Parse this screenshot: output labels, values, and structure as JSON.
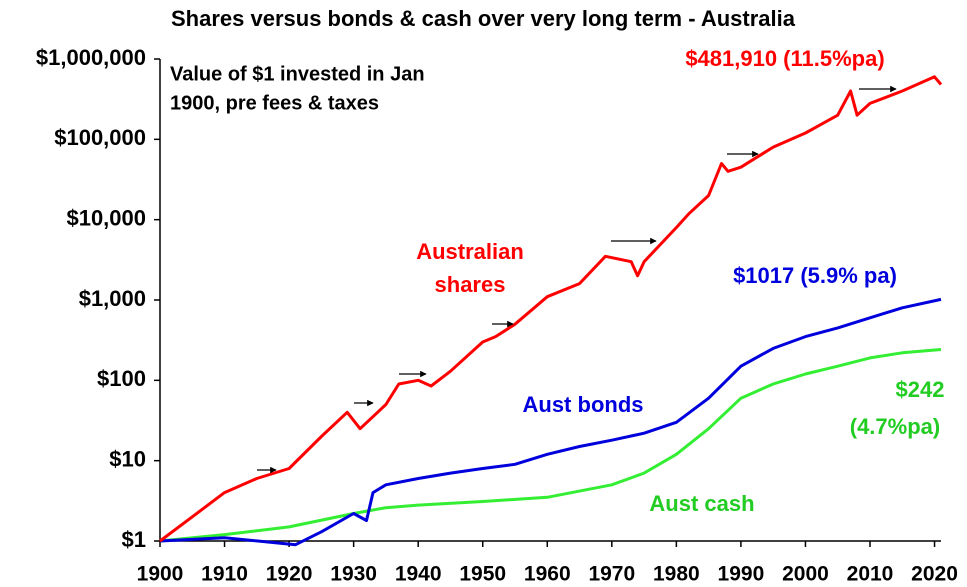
{
  "chart_data": {
    "type": "line",
    "title": "Shares versus bonds & cash over very long term - Australia",
    "log_scale": true,
    "xlim": [
      1900,
      2021
    ],
    "xticks": [
      1900,
      1910,
      1920,
      1930,
      1940,
      1950,
      1960,
      1970,
      1980,
      1990,
      2000,
      2010,
      2020
    ],
    "ylim": [
      1,
      1000000
    ],
    "yticks": [
      {
        "value": 1,
        "label": "$1"
      },
      {
        "value": 10,
        "label": "$10"
      },
      {
        "value": 100,
        "label": "$100"
      },
      {
        "value": 1000,
        "label": "$1,000"
      },
      {
        "value": 10000,
        "label": "$10,000"
      },
      {
        "value": 100000,
        "label": "$100,000"
      },
      {
        "value": 1000000,
        "label": "$1,000,000"
      }
    ],
    "series": [
      {
        "name": "Australian shares",
        "color": "#ff0000",
        "x": [
          1900,
          1905,
          1910,
          1915,
          1920,
          1925,
          1929,
          1931,
          1935,
          1937,
          1940,
          1942,
          1945,
          1950,
          1952,
          1955,
          1960,
          1965,
          1969,
          1973,
          1974,
          1975,
          1980,
          1982,
          1985,
          1987,
          1988,
          1990,
          1995,
          2000,
          2005,
          2007,
          2008,
          2010,
          2015,
          2020,
          2021
        ],
        "values": [
          1,
          2,
          4,
          6,
          8,
          20,
          40,
          25,
          50,
          90,
          100,
          85,
          130,
          300,
          350,
          500,
          1100,
          1600,
          3500,
          3000,
          2000,
          3000,
          8000,
          12000,
          20000,
          50000,
          40000,
          45000,
          80000,
          120000,
          200000,
          400000,
          200000,
          280000,
          400000,
          600000,
          481910
        ]
      },
      {
        "name": "Aust bonds",
        "color": "#0000dd",
        "x": [
          1900,
          1910,
          1921,
          1925,
          1930,
          1932,
          1933,
          1935,
          1940,
          1945,
          1950,
          1955,
          1960,
          1965,
          1970,
          1975,
          1980,
          1985,
          1990,
          1995,
          2000,
          2005,
          2010,
          2015,
          2021
        ],
        "values": [
          1,
          1.1,
          0.9,
          1.3,
          2.2,
          1.8,
          4,
          5,
          6,
          7,
          8,
          9,
          12,
          15,
          18,
          22,
          30,
          60,
          150,
          250,
          350,
          450,
          600,
          800,
          1017
        ]
      },
      {
        "name": "Aust cash",
        "color": "#33ee33",
        "x": [
          1900,
          1910,
          1920,
          1930,
          1935,
          1940,
          1950,
          1960,
          1970,
          1975,
          1980,
          1985,
          1990,
          1995,
          2000,
          2005,
          2010,
          2015,
          2021
        ],
        "values": [
          1,
          1.2,
          1.5,
          2.2,
          2.6,
          2.8,
          3.1,
          3.5,
          5,
          7,
          12,
          25,
          60,
          90,
          120,
          150,
          190,
          220,
          242
        ]
      }
    ],
    "annotations": [
      {
        "lines": [
          "Value of $1 invested in Jan",
          "1900, pre fees & taxes"
        ],
        "color": "#000000"
      },
      {
        "lines": [
          "$481,910 (11.5%pa)"
        ],
        "color": "#ff0000"
      },
      {
        "lines": [
          "Australian",
          "shares"
        ],
        "color": "#ff0000"
      },
      {
        "lines": [
          "$1017 (5.9% pa)"
        ],
        "color": "#0000dd"
      },
      {
        "lines": [
          "Aust bonds"
        ],
        "color": "#0000dd"
      },
      {
        "lines": [
          "$242",
          "(4.7%pa)"
        ],
        "color": "#22cc22"
      },
      {
        "lines": [
          "Aust cash"
        ],
        "color": "#22cc22"
      }
    ]
  }
}
